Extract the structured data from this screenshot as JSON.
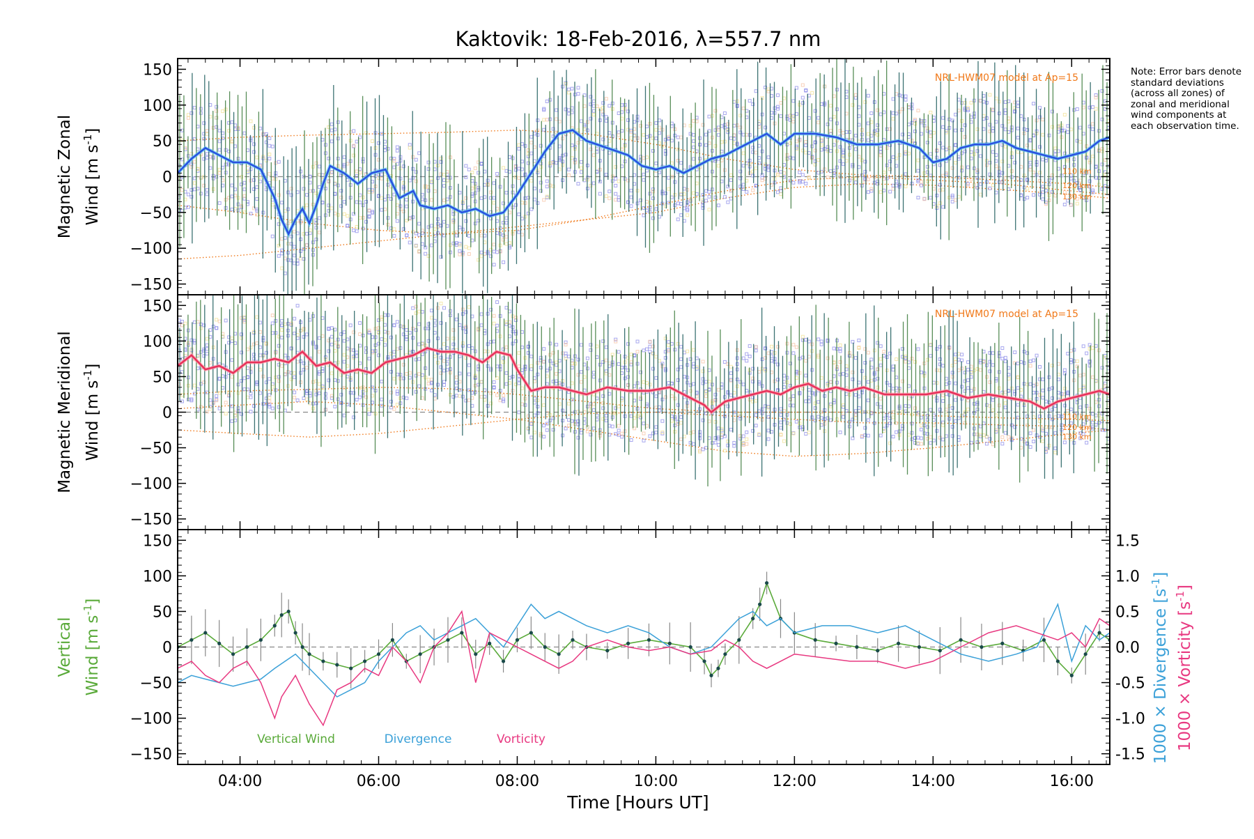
{
  "chart_data": {
    "type": "line",
    "title": "Kaktovik: 18-Feb-2016, λ=557.7 nm",
    "xlabel": "Time [Hours UT]",
    "x_tick_labels": [
      "04:00",
      "06:00",
      "08:00",
      "10:00",
      "12:00",
      "14:00",
      "16:00"
    ],
    "x_ticks_hours": [
      4,
      6,
      8,
      10,
      12,
      14,
      16
    ],
    "xlim_hours": [
      3.1,
      16.55
    ],
    "note": "Note: Error bars denote standard deviations (across all zones) of zonal and meridional wind components at each observation time.",
    "colors": {
      "zonal": "#2a4fe0",
      "zonal_glow": "#5cc8f0",
      "meridional": "#e8305a",
      "meridional_glow": "#ff9aa8",
      "vertical": "#5aaa3a",
      "divergence": "#3aa0d8",
      "vorticity": "#e83880",
      "model": "#f07818",
      "zone_points": "#8a8ae8",
      "errorbar": "#1a5a5a"
    },
    "panels": [
      {
        "id": "zonal",
        "ylabel_line1": "Magnetic Zonal",
        "ylabel_line2": "Wind [m s",
        "ylabel_unit_exp": "-1",
        "ylabel_close": "]",
        "ylim": [
          -165,
          165
        ],
        "y_ticks": [
          -150,
          -100,
          -50,
          0,
          50,
          100,
          150
        ],
        "model_label": "NRL-HWM07 model at Ap=15",
        "model_alt_labels": [
          "110 km",
          "120 km",
          "130 km"
        ],
        "series": {
          "name": "Zonal wind",
          "x": [
            3.1,
            3.3,
            3.5,
            3.7,
            3.9,
            4.1,
            4.3,
            4.5,
            4.6,
            4.7,
            4.8,
            4.9,
            5.0,
            5.1,
            5.2,
            5.3,
            5.5,
            5.7,
            5.9,
            6.1,
            6.3,
            6.5,
            6.6,
            6.8,
            7.0,
            7.2,
            7.4,
            7.6,
            7.8,
            8.0,
            8.2,
            8.4,
            8.6,
            8.8,
            9.0,
            9.3,
            9.6,
            9.8,
            10.0,
            10.2,
            10.4,
            10.6,
            10.8,
            11.0,
            11.2,
            11.4,
            11.6,
            11.8,
            12.0,
            12.3,
            12.6,
            12.9,
            13.2,
            13.5,
            13.8,
            14.0,
            14.2,
            14.4,
            14.6,
            14.8,
            15.0,
            15.2,
            15.4,
            15.6,
            15.8,
            16.0,
            16.2,
            16.4,
            16.55
          ],
          "y": [
            5,
            25,
            40,
            30,
            20,
            20,
            10,
            -30,
            -60,
            -80,
            -60,
            -45,
            -65,
            -40,
            -10,
            15,
            5,
            -10,
            5,
            10,
            -30,
            -20,
            -40,
            -45,
            -40,
            -50,
            -45,
            -55,
            -50,
            -25,
            5,
            35,
            60,
            65,
            50,
            40,
            30,
            15,
            10,
            15,
            5,
            15,
            25,
            30,
            40,
            50,
            60,
            45,
            60,
            60,
            55,
            45,
            45,
            50,
            40,
            20,
            25,
            40,
            45,
            45,
            50,
            40,
            35,
            30,
            25,
            30,
            35,
            50,
            55
          ]
        },
        "model_curves": [
          {
            "name": "110 km",
            "x": [
              3.1,
              4,
              5,
              6,
              7,
              8,
              9,
              10,
              11,
              12,
              13,
              14,
              15,
              16,
              16.55
            ],
            "y": [
              50,
              55,
              58,
              60,
              62,
              65,
              60,
              45,
              25,
              10,
              2,
              0,
              -5,
              -10,
              -15
            ]
          },
          {
            "name": "120 km",
            "x": [
              3.1,
              4,
              5,
              6,
              7,
              8,
              9,
              10,
              11,
              12,
              13,
              14,
              15,
              16,
              16.55
            ],
            "y": [
              -40,
              -50,
              -65,
              -75,
              -80,
              -75,
              -60,
              -40,
              -20,
              -5,
              0,
              -5,
              -10,
              -20,
              -25
            ]
          },
          {
            "name": "130 km",
            "x": [
              3.1,
              4,
              5,
              6,
              7,
              8,
              9,
              10,
              11,
              12,
              13,
              14,
              15,
              16,
              16.55
            ],
            "y": [
              -115,
              -110,
              -100,
              -90,
              -80,
              -70,
              -60,
              -50,
              -30,
              -15,
              -10,
              -12,
              -18,
              -25,
              -30
            ]
          }
        ]
      },
      {
        "id": "meridional",
        "ylabel_line1": "Magnetic Meridional",
        "ylabel_line2": "Wind [m s",
        "ylabel_unit_exp": "-1",
        "ylabel_close": "]",
        "ylim": [
          -165,
          165
        ],
        "y_ticks": [
          -150,
          -100,
          -50,
          0,
          50,
          100,
          150
        ],
        "model_label": "NRL-HWM07 model at Ap=15",
        "model_alt_labels": [
          "110 km",
          "120 km",
          "130 km"
        ],
        "series": {
          "name": "Meridional wind",
          "x": [
            3.1,
            3.3,
            3.5,
            3.7,
            3.9,
            4.1,
            4.3,
            4.5,
            4.7,
            4.9,
            5.1,
            5.3,
            5.5,
            5.7,
            5.9,
            6.1,
            6.3,
            6.5,
            6.7,
            6.9,
            7.1,
            7.3,
            7.5,
            7.7,
            7.9,
            8.0,
            8.2,
            8.4,
            8.6,
            8.8,
            9.0,
            9.3,
            9.6,
            9.9,
            10.2,
            10.5,
            10.7,
            10.8,
            11.0,
            11.2,
            11.4,
            11.6,
            11.8,
            12.0,
            12.2,
            12.4,
            12.6,
            12.8,
            13.0,
            13.3,
            13.6,
            13.9,
            14.2,
            14.5,
            14.8,
            15.1,
            15.4,
            15.6,
            15.8,
            16.0,
            16.2,
            16.4,
            16.55
          ],
          "y": [
            65,
            80,
            60,
            65,
            55,
            70,
            70,
            75,
            70,
            85,
            65,
            70,
            55,
            60,
            55,
            70,
            75,
            80,
            90,
            85,
            85,
            80,
            70,
            85,
            80,
            60,
            30,
            35,
            35,
            30,
            25,
            35,
            30,
            30,
            35,
            20,
            10,
            0,
            15,
            20,
            25,
            30,
            25,
            35,
            40,
            30,
            35,
            30,
            35,
            25,
            25,
            25,
            30,
            20,
            25,
            20,
            15,
            5,
            15,
            20,
            25,
            30,
            25
          ]
        },
        "model_curves": [
          {
            "name": "110 km",
            "x": [
              3.1,
              4,
              5,
              6,
              7,
              8,
              9,
              10,
              11,
              12,
              13,
              14,
              15,
              16,
              16.55
            ],
            "y": [
              25,
              30,
              32,
              35,
              33,
              25,
              15,
              5,
              0,
              0,
              0,
              -5,
              -8,
              -10,
              -12
            ]
          },
          {
            "name": "120 km",
            "x": [
              3.1,
              4,
              5,
              6,
              7,
              8,
              9,
              10,
              11,
              12,
              13,
              14,
              15,
              16,
              16.55
            ],
            "y": [
              -25,
              -30,
              -35,
              -30,
              -20,
              -10,
              -2,
              0,
              -5,
              -10,
              -15,
              -15,
              -18,
              -20,
              -25
            ]
          },
          {
            "name": "130 km",
            "x": [
              3.1,
              4,
              5,
              6,
              7,
              8,
              9,
              10,
              11,
              12,
              13,
              14,
              15,
              16,
              16.55
            ],
            "y": [
              5,
              10,
              15,
              10,
              0,
              -10,
              -25,
              -40,
              -55,
              -62,
              -58,
              -50,
              -40,
              -30,
              -25
            ]
          }
        ]
      },
      {
        "id": "vertical",
        "ylabel_line1": "Vertical",
        "ylabel_line2": "Wind [m s",
        "ylabel_unit_exp": "-1",
        "ylabel_close": "]",
        "ylim": [
          -165,
          165
        ],
        "y_ticks": [
          -150,
          -100,
          -50,
          0,
          50,
          100,
          150
        ],
        "right_axis": {
          "ylim": [
            -1.65,
            1.65
          ],
          "y_tick_labels": [
            "-1.5",
            "-1.0",
            "-0.5",
            "0.0",
            "0.5",
            "1.0",
            "1.5"
          ],
          "y_ticks": [
            -1.5,
            -1.0,
            -0.5,
            0.0,
            0.5,
            1.0,
            1.5
          ],
          "label_divergence": "1000 × Divergence [s",
          "label_vorticity": "1000 × Vorticity [s",
          "label_exp": "-1",
          "label_close": "]"
        },
        "legend": [
          "Vertical Wind",
          "Divergence",
          "Vorticity"
        ],
        "series": [
          {
            "name": "Vertical Wind",
            "x": [
              3.1,
              3.3,
              3.5,
              3.7,
              3.9,
              4.1,
              4.3,
              4.5,
              4.6,
              4.7,
              4.8,
              4.9,
              5.0,
              5.2,
              5.4,
              5.6,
              5.8,
              6.0,
              6.2,
              6.4,
              6.6,
              6.8,
              7.0,
              7.2,
              7.4,
              7.6,
              7.8,
              8.0,
              8.2,
              8.4,
              8.6,
              8.8,
              9.0,
              9.3,
              9.6,
              9.9,
              10.2,
              10.5,
              10.7,
              10.8,
              10.9,
              11.0,
              11.2,
              11.4,
              11.5,
              11.6,
              11.8,
              12.0,
              12.3,
              12.6,
              12.9,
              13.2,
              13.5,
              13.8,
              14.1,
              14.4,
              14.7,
              15.0,
              15.3,
              15.6,
              15.8,
              16.0,
              16.2,
              16.4,
              16.55
            ],
            "y": [
              0,
              10,
              20,
              5,
              -10,
              0,
              10,
              30,
              45,
              50,
              20,
              0,
              -10,
              -20,
              -25,
              -30,
              -20,
              -10,
              10,
              -20,
              -10,
              0,
              10,
              20,
              -10,
              5,
              -20,
              10,
              20,
              0,
              -10,
              10,
              0,
              -5,
              5,
              10,
              5,
              0,
              -20,
              -40,
              -30,
              -10,
              10,
              40,
              60,
              90,
              40,
              20,
              10,
              5,
              0,
              -5,
              5,
              0,
              -5,
              10,
              0,
              5,
              -5,
              10,
              -20,
              -40,
              -10,
              20,
              10
            ]
          },
          {
            "name": "Divergence",
            "x": [
              3.1,
              3.3,
              3.5,
              3.7,
              3.9,
              4.1,
              4.3,
              4.5,
              4.8,
              5.0,
              5.2,
              5.4,
              5.6,
              5.8,
              6.0,
              6.2,
              6.4,
              6.6,
              6.8,
              7.0,
              7.2,
              7.4,
              7.6,
              7.8,
              8.0,
              8.2,
              8.4,
              8.6,
              8.8,
              9.0,
              9.3,
              9.6,
              9.9,
              10.2,
              10.5,
              10.8,
              11.0,
              11.2,
              11.4,
              11.6,
              11.8,
              12.0,
              12.4,
              12.8,
              13.2,
              13.6,
              14.0,
              14.4,
              14.8,
              15.2,
              15.5,
              15.8,
              16.0,
              16.2,
              16.4,
              16.55
            ],
            "y": [
              -0.5,
              -0.4,
              -0.45,
              -0.5,
              -0.55,
              -0.5,
              -0.45,
              -0.3,
              -0.1,
              -0.3,
              -0.5,
              -0.7,
              -0.6,
              -0.5,
              -0.2,
              0.0,
              0.2,
              0.3,
              0.1,
              0.2,
              0.3,
              0.4,
              0.2,
              0.0,
              0.3,
              0.6,
              0.4,
              0.5,
              0.4,
              0.3,
              0.2,
              0.3,
              0.2,
              0.0,
              -0.1,
              0.0,
              0.2,
              0.4,
              0.5,
              0.3,
              0.4,
              0.2,
              0.3,
              0.3,
              0.2,
              0.3,
              0.1,
              -0.1,
              -0.2,
              -0.1,
              0.0,
              0.6,
              -0.2,
              0.3,
              0.1,
              0.2
            ]
          },
          {
            "name": "Vorticity",
            "x": [
              3.1,
              3.3,
              3.5,
              3.7,
              3.9,
              4.1,
              4.3,
              4.5,
              4.6,
              4.8,
              5.0,
              5.2,
              5.4,
              5.6,
              5.8,
              6.0,
              6.2,
              6.4,
              6.6,
              6.8,
              7.0,
              7.2,
              7.4,
              7.6,
              7.8,
              8.0,
              8.2,
              8.4,
              8.6,
              8.8,
              9.0,
              9.3,
              9.6,
              9.9,
              10.2,
              10.5,
              10.8,
              11.0,
              11.2,
              11.4,
              11.6,
              11.8,
              12.0,
              12.4,
              12.8,
              13.2,
              13.6,
              14.0,
              14.4,
              14.8,
              15.2,
              15.5,
              15.8,
              16.0,
              16.2,
              16.4,
              16.55
            ],
            "y": [
              -0.3,
              -0.2,
              -0.4,
              -0.5,
              -0.3,
              -0.2,
              -0.5,
              -1.0,
              -0.7,
              -0.4,
              -0.8,
              -1.1,
              -0.6,
              -0.5,
              -0.3,
              -0.4,
              0.0,
              -0.2,
              -0.5,
              0.0,
              0.2,
              0.5,
              -0.5,
              0.2,
              0.1,
              0.0,
              -0.1,
              -0.2,
              -0.3,
              -0.2,
              0.0,
              0.1,
              0.0,
              -0.05,
              0.0,
              -0.1,
              -0.05,
              0.1,
              0.0,
              -0.2,
              -0.3,
              -0.2,
              -0.1,
              -0.15,
              -0.2,
              -0.2,
              -0.3,
              -0.2,
              0.0,
              0.2,
              0.3,
              0.2,
              0.1,
              0.2,
              0.0,
              0.4,
              0.3
            ]
          }
        ]
      }
    ]
  }
}
